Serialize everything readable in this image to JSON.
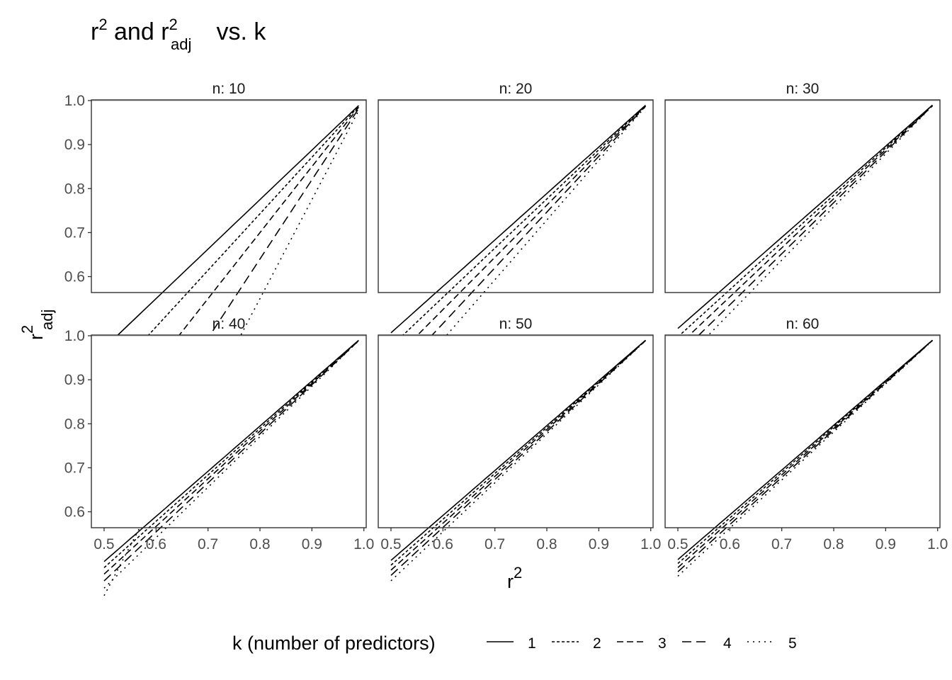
{
  "chart_data": {
    "type": "line",
    "title": {
      "base": "r",
      "sup1": "2",
      "mid": " and r",
      "sub": "adj",
      "sup2": "2",
      "tail": " vs. k"
    },
    "xlabel": {
      "base": "r",
      "sup": "2"
    },
    "ylabel": {
      "base": "r",
      "sub": "adj",
      "sup": "2"
    },
    "xlim": [
      0.5,
      0.99
    ],
    "ylim": [
      0.58,
      1.0
    ],
    "x_ticks": [
      "0.5",
      "0.6",
      "0.7",
      "0.8",
      "0.9",
      "1.0"
    ],
    "y_ticks": [
      "0.6",
      "0.7",
      "0.8",
      "0.9",
      "1.0"
    ],
    "reference_line_y": 1.0,
    "facet_prefix": "n: ",
    "panels": [
      {
        "n": 10,
        "label": "n: 10"
      },
      {
        "n": 20,
        "label": "n: 20"
      },
      {
        "n": 30,
        "label": "n: 30"
      },
      {
        "n": 40,
        "label": "n: 40"
      },
      {
        "n": 50,
        "label": "n: 50"
      },
      {
        "n": 60,
        "label": "n: 60"
      }
    ],
    "series": [
      {
        "name": "1",
        "k": 1,
        "linetype": "solid"
      },
      {
        "name": "2",
        "k": 2,
        "linetype": "dotted"
      },
      {
        "name": "3",
        "k": 3,
        "linetype": "dashed"
      },
      {
        "name": "4",
        "k": 4,
        "linetype": "longdash"
      },
      {
        "name": "5",
        "k": 5,
        "linetype": "finedotted"
      }
    ],
    "legend": {
      "title": "k (number of predictors)",
      "position": "bottom"
    }
  }
}
